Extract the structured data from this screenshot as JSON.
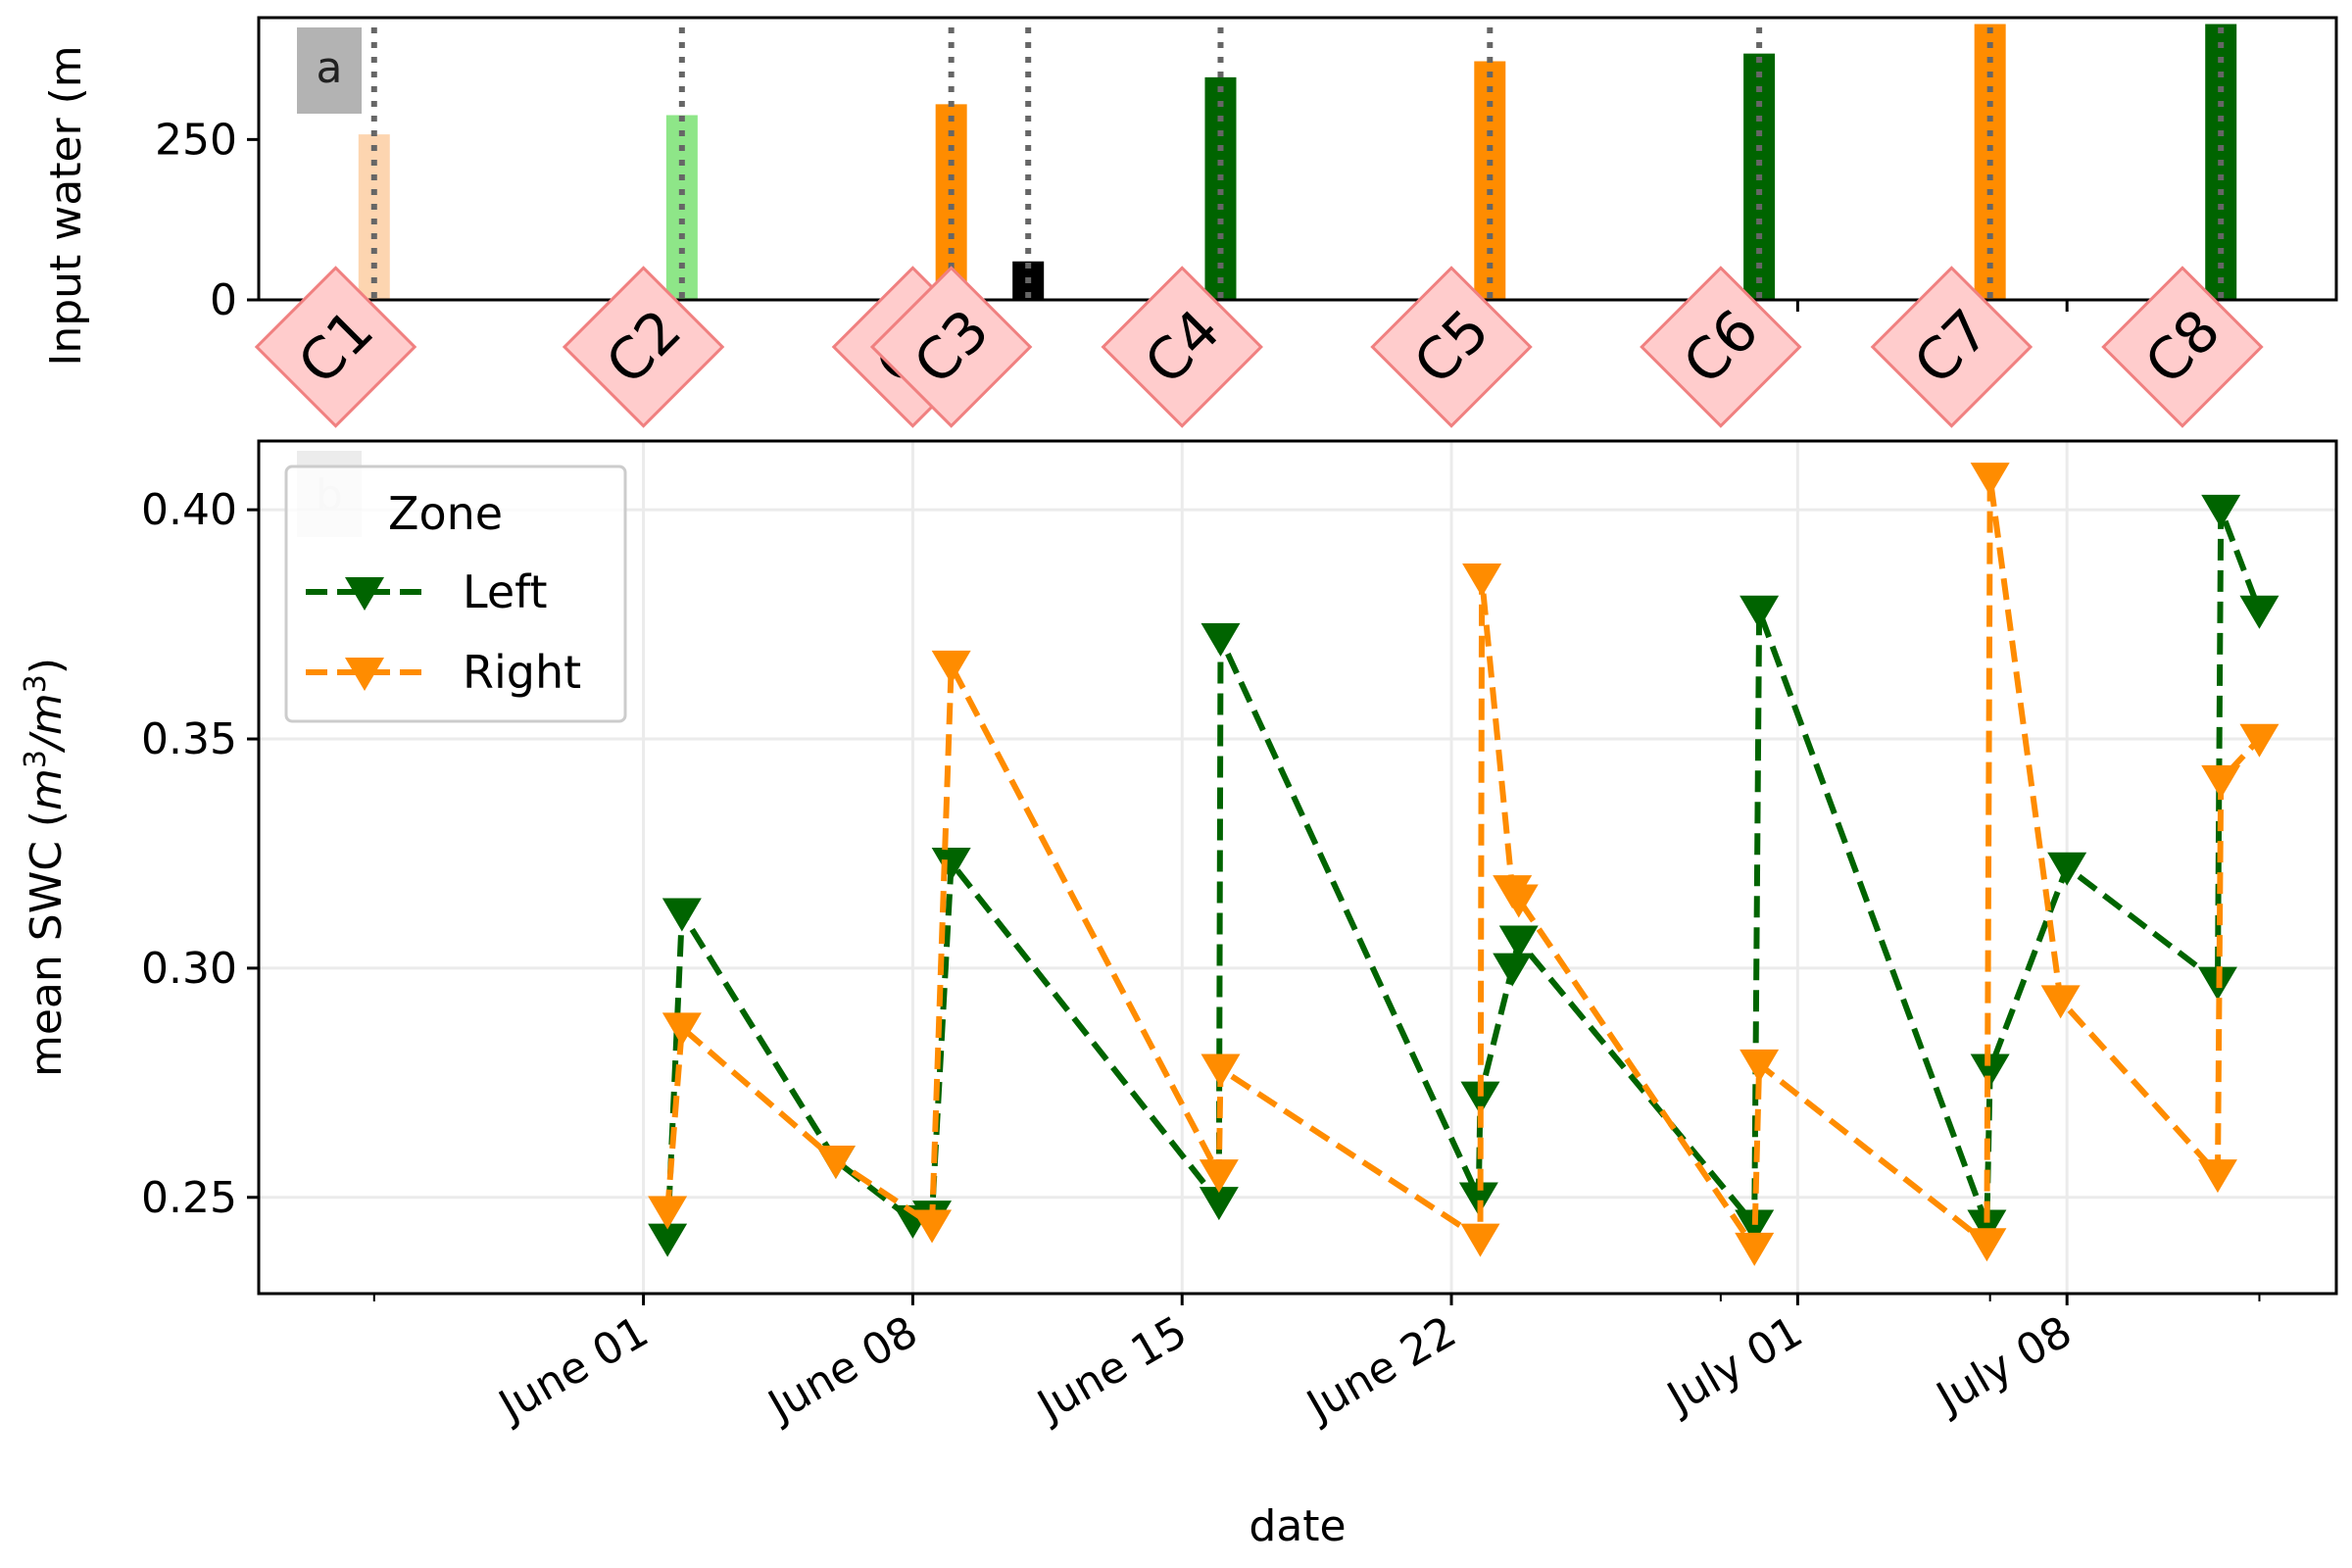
{
  "chart_data": [
    {
      "panel": "a",
      "type": "bar",
      "panel_label": "a",
      "ylabel": "Input water (m",
      "ylim": [
        0,
        440
      ],
      "yticks": [
        0,
        250
      ],
      "bars": [
        {
          "date": "2020-05-25",
          "value": 258,
          "color": "#fdd5b0"
        },
        {
          "date": "2020-06-02",
          "value": 288,
          "color": "#8ee688"
        },
        {
          "date": "2020-06-09",
          "value": 305,
          "color": "#ff8c00"
        },
        {
          "date": "2020-06-11",
          "value": 60,
          "color": "#000000"
        },
        {
          "date": "2020-06-16",
          "value": 347,
          "color": "#006400"
        },
        {
          "date": "2020-06-23",
          "value": 372,
          "color": "#ff8c00"
        },
        {
          "date": "2020-06-30",
          "value": 384,
          "color": "#006400"
        },
        {
          "date": "2020-07-06",
          "value": 430,
          "color": "#ff8c00"
        },
        {
          "date": "2020-07-12",
          "value": 430,
          "color": "#006400"
        }
      ],
      "event_lines": [
        "2020-05-25",
        "2020-06-02",
        "2020-06-09",
        "2020-06-11",
        "2020-06-16",
        "2020-06-23",
        "2020-06-30",
        "2020-07-06",
        "2020-07-12"
      ],
      "campaigns": [
        {
          "label": "C1",
          "date": "2020-05-24"
        },
        {
          "label": "C2",
          "date": "2020-06-01"
        },
        {
          "label": "C3",
          "date": "2020-06-08"
        },
        {
          "label": "C3",
          "date": "2020-06-09"
        },
        {
          "label": "C4",
          "date": "2020-06-15"
        },
        {
          "label": "C5",
          "date": "2020-06-22"
        },
        {
          "label": "C6",
          "date": "2020-06-29"
        },
        {
          "label": "C7",
          "date": "2020-07-05"
        },
        {
          "label": "C8",
          "date": "2020-07-11"
        }
      ]
    },
    {
      "panel": "b",
      "type": "line",
      "panel_label": "b",
      "xlabel": "date",
      "ylabel_prefix": "mean SWC (",
      "ylabel_units": [
        "m",
        "3",
        "/",
        "m",
        "3"
      ],
      "ylabel_suffix": ")",
      "ylim": [
        0.229,
        0.415
      ],
      "yticks": [
        "0.25",
        "0.30",
        "0.35",
        "0.40"
      ],
      "xlim": [
        "2020-05-22",
        "2020-07-15"
      ],
      "xticks": [
        {
          "date": "2020-06-01",
          "label": "June 01"
        },
        {
          "date": "2020-06-08",
          "label": "June 08"
        },
        {
          "date": "2020-06-15",
          "label": "June 15"
        },
        {
          "date": "2020-06-22",
          "label": "June 22"
        },
        {
          "date": "2020-07-01",
          "label": "July 01"
        },
        {
          "date": "2020-07-08",
          "label": "July 08"
        }
      ],
      "legend": {
        "title": "Zone",
        "location": "upper-left"
      },
      "series": [
        {
          "name": "Left",
          "color": "#006400",
          "points": [
            [
              "2020-06-01 15:00",
              0.241
            ],
            [
              "2020-06-02",
              0.312
            ],
            [
              "2020-06-06",
              0.258
            ],
            [
              "2020-06-08",
              0.245
            ],
            [
              "2020-06-08 12:00",
              0.246
            ],
            [
              "2020-06-09",
              0.323
            ],
            [
              "2020-06-15 23:00",
              0.249
            ],
            [
              "2020-06-16",
              0.372
            ],
            [
              "2020-06-22 17:00",
              0.25
            ],
            [
              "2020-06-22 18:00",
              0.272
            ],
            [
              "2020-06-23 14:00",
              0.3
            ],
            [
              "2020-06-23 18:00",
              0.306
            ],
            [
              "2020-06-29 21:00",
              0.244
            ],
            [
              "2020-06-30",
              0.378
            ],
            [
              "2020-07-05 22:00",
              0.244
            ],
            [
              "2020-07-06",
              0.278
            ],
            [
              "2020-07-08",
              0.322
            ],
            [
              "2020-07-11 22:00",
              0.297
            ],
            [
              "2020-07-12",
              0.4
            ],
            [
              "2020-07-13",
              0.378
            ]
          ]
        },
        {
          "name": "Right",
          "color": "#ff8c00",
          "points": [
            [
              "2020-06-01 15:00",
              0.247
            ],
            [
              "2020-06-02",
              0.287
            ],
            [
              "2020-06-06",
              0.258
            ],
            [
              "2020-06-08 12:00",
              0.244
            ],
            [
              "2020-06-09",
              0.366
            ],
            [
              "2020-06-15 23:00",
              0.255
            ],
            [
              "2020-06-16",
              0.278
            ],
            [
              "2020-06-22 18:00",
              0.241
            ],
            [
              "2020-06-22 19:00",
              0.385
            ],
            [
              "2020-06-23 14:00",
              0.317
            ],
            [
              "2020-06-23 18:00",
              0.315
            ],
            [
              "2020-06-29 21:00",
              0.239
            ],
            [
              "2020-06-30",
              0.279
            ],
            [
              "2020-07-05 22:00",
              0.24
            ],
            [
              "2020-07-06",
              0.407
            ],
            [
              "2020-07-07 20:00",
              0.293
            ],
            [
              "2020-07-11 22:00",
              0.255
            ],
            [
              "2020-07-12",
              0.341
            ],
            [
              "2020-07-13",
              0.35
            ]
          ]
        }
      ]
    }
  ]
}
